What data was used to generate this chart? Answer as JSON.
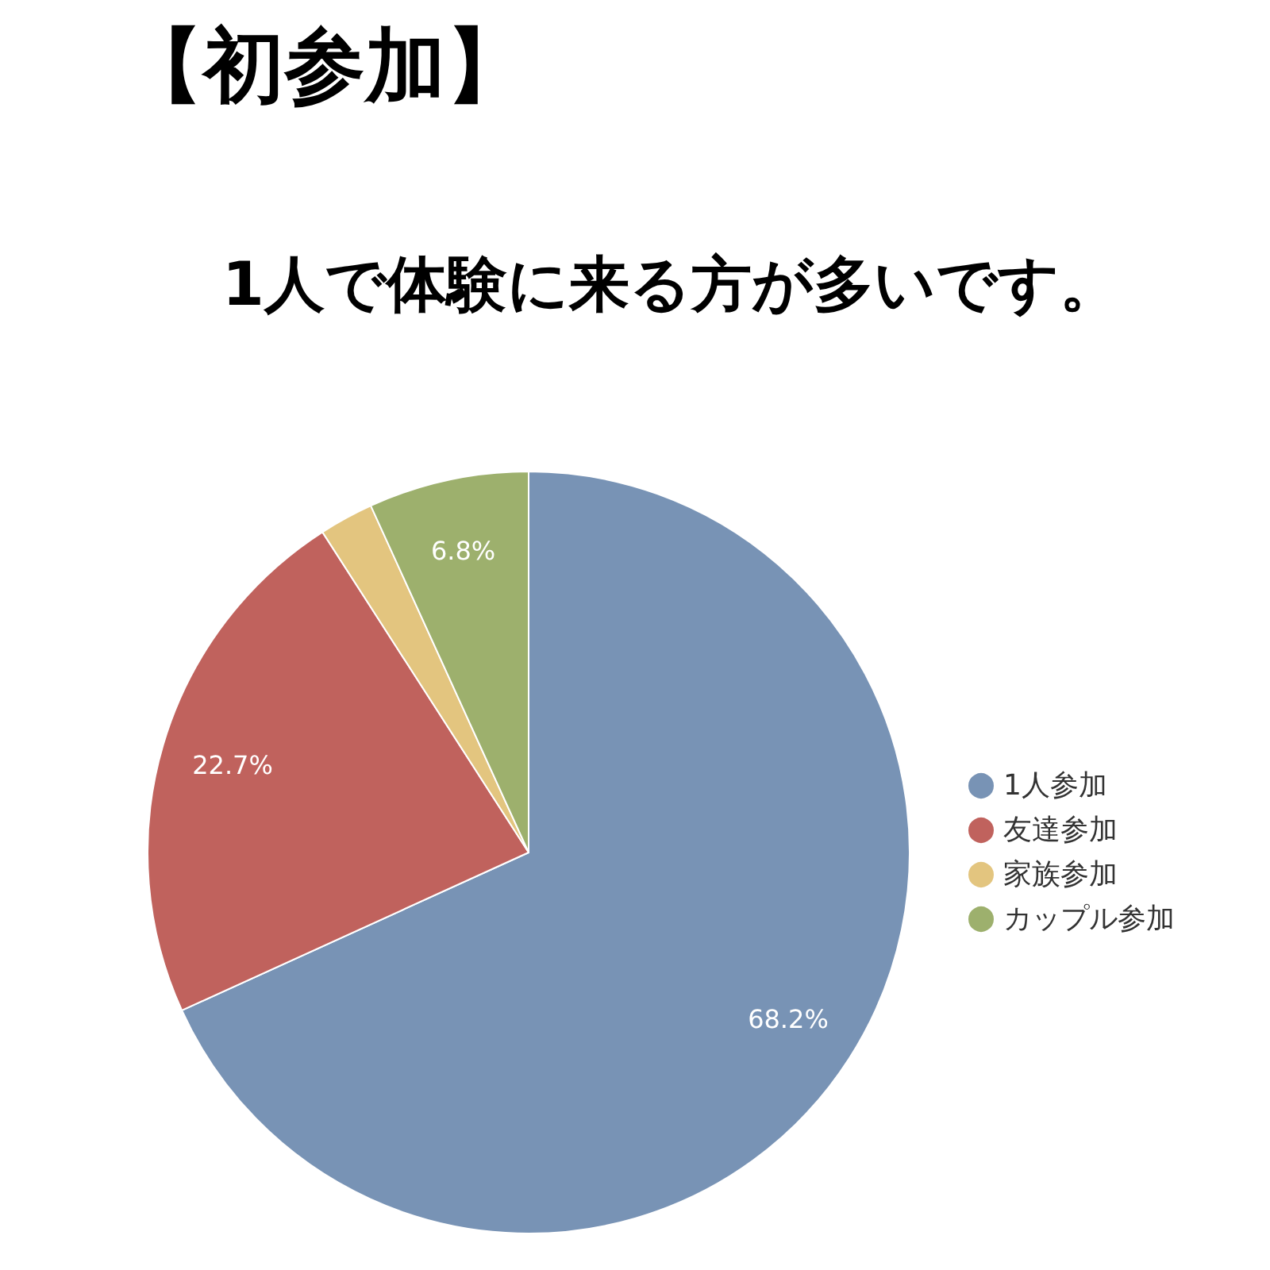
{
  "chart_data": {
    "type": "pie",
    "title": "【初参加】",
    "subtitle": "1人で体験に来る方が多いです。",
    "categories": [
      "1人参加",
      "友達参加",
      "家族参加",
      "カップル参加"
    ],
    "values": [
      68.2,
      22.7,
      2.3,
      6.8
    ],
    "colors": [
      "#7893b5",
      "#c0625d",
      "#e3c57f",
      "#9db06d"
    ],
    "value_labels": [
      "68.2%",
      "22.7%",
      null,
      "6.8%"
    ],
    "legend": "right"
  }
}
